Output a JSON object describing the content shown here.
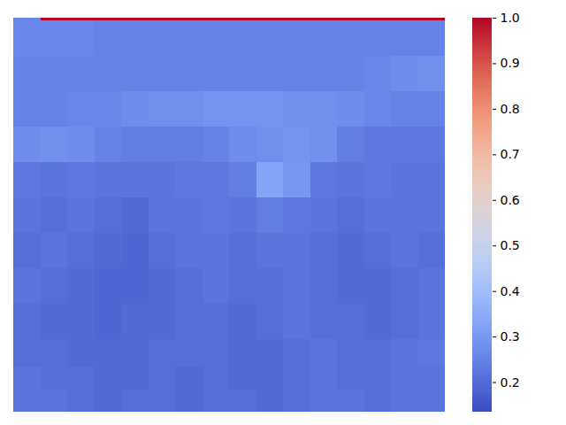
{
  "chart_data": {
    "type": "heatmap",
    "tick_labels": false,
    "x_edges": [
      0,
      30.5,
      61,
      91.5,
      122,
      152.5,
      183,
      213.5,
      244,
      274.5,
      305,
      335.5,
      366,
      396.5,
      427,
      457.5,
      488
    ],
    "y_edges": [
      0,
      3,
      43,
      83,
      123,
      163,
      203,
      243,
      283,
      323,
      363,
      394,
      420,
      445
    ],
    "cells": [
      [
        0.26,
        1,
        1,
        1,
        1,
        1,
        1,
        1,
        1,
        1,
        1,
        1,
        1,
        1,
        1,
        1
      ],
      [
        0.26,
        0.26,
        0.26,
        0.25,
        0.25,
        0.25,
        0.25,
        0.25,
        0.25,
        0.25,
        0.25,
        0.25,
        0.25,
        0.25,
        0.25,
        0.25
      ],
      [
        0.25,
        0.25,
        0.25,
        0.25,
        0.25,
        0.25,
        0.25,
        0.25,
        0.25,
        0.25,
        0.25,
        0.25,
        0.25,
        0.26,
        0.27,
        0.28
      ],
      [
        0.25,
        0.25,
        0.26,
        0.26,
        0.27,
        0.28,
        0.28,
        0.29,
        0.29,
        0.29,
        0.28,
        0.28,
        0.27,
        0.26,
        0.25,
        0.25
      ],
      [
        0.27,
        0.28,
        0.27,
        0.25,
        0.24,
        0.24,
        0.24,
        0.25,
        0.27,
        0.28,
        0.29,
        0.28,
        0.24,
        0.23,
        0.23,
        0.23
      ],
      [
        0.23,
        0.22,
        0.23,
        0.22,
        0.22,
        0.22,
        0.23,
        0.23,
        0.24,
        0.33,
        0.3,
        0.23,
        0.22,
        0.23,
        0.22,
        0.22
      ],
      [
        0.22,
        0.21,
        0.22,
        0.21,
        0.2,
        0.22,
        0.22,
        0.23,
        0.22,
        0.24,
        0.23,
        0.22,
        0.21,
        0.22,
        0.22,
        0.22
      ],
      [
        0.21,
        0.22,
        0.21,
        0.2,
        0.19,
        0.21,
        0.22,
        0.22,
        0.21,
        0.22,
        0.22,
        0.21,
        0.2,
        0.21,
        0.22,
        0.21
      ],
      [
        0.22,
        0.21,
        0.2,
        0.19,
        0.19,
        0.2,
        0.21,
        0.22,
        0.21,
        0.21,
        0.22,
        0.21,
        0.2,
        0.2,
        0.21,
        0.22
      ],
      [
        0.21,
        0.2,
        0.2,
        0.19,
        0.2,
        0.2,
        0.21,
        0.21,
        0.2,
        0.21,
        0.22,
        0.21,
        0.21,
        0.2,
        0.21,
        0.22
      ],
      [
        0.21,
        0.21,
        0.2,
        0.2,
        0.2,
        0.21,
        0.21,
        0.21,
        0.2,
        0.2,
        0.21,
        0.22,
        0.21,
        0.21,
        0.22,
        0.23
      ],
      [
        0.22,
        0.21,
        0.21,
        0.2,
        0.2,
        0.21,
        0.2,
        0.21,
        0.2,
        0.2,
        0.21,
        0.22,
        0.21,
        0.21,
        0.22,
        0.22
      ],
      [
        0.22,
        0.22,
        0.21,
        0.2,
        0.21,
        0.21,
        0.2,
        0.21,
        0.21,
        0.2,
        0.21,
        0.22,
        0.22,
        0.21,
        0.22,
        0.22
      ]
    ],
    "colorbar": {
      "range": [
        0.135,
        1
      ],
      "ticks": [
        0.2,
        0.3,
        0.4,
        0.5,
        0.6,
        0.7,
        0.8,
        0.9,
        {
          "value": 1,
          "label": "1.0"
        }
      ]
    }
  }
}
